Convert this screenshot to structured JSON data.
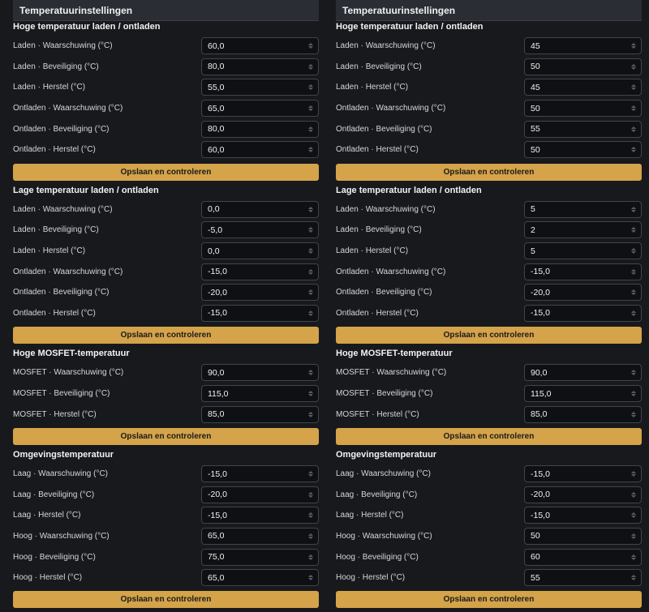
{
  "left": {
    "header": "Temperatuurinstellingen",
    "sections": [
      {
        "title": "Hoge temperatuur laden / ontladen",
        "button": "Opslaan en controleren",
        "rows": [
          {
            "label": "Laden · Waarschuwing (°C)",
            "value": "60,0"
          },
          {
            "label": "Laden · Beveiliging (°C)",
            "value": "80,0"
          },
          {
            "label": "Laden · Herstel (°C)",
            "value": "55,0"
          },
          {
            "label": "Ontladen · Waarschuwing (°C)",
            "value": "65,0"
          },
          {
            "label": "Ontladen · Beveiliging (°C)",
            "value": "80,0"
          },
          {
            "label": "Ontladen · Herstel (°C)",
            "value": "60,0"
          }
        ]
      },
      {
        "title": "Lage temperatuur laden / ontladen",
        "button": "Opslaan en controleren",
        "rows": [
          {
            "label": "Laden · Waarschuwing (°C)",
            "value": "0,0"
          },
          {
            "label": "Laden · Beveiliging (°C)",
            "value": "-5,0"
          },
          {
            "label": "Laden · Herstel (°C)",
            "value": "0,0"
          },
          {
            "label": "Ontladen · Waarschuwing (°C)",
            "value": "-15,0"
          },
          {
            "label": "Ontladen · Beveiliging (°C)",
            "value": "-20,0"
          },
          {
            "label": "Ontladen · Herstel (°C)",
            "value": "-15,0"
          }
        ]
      },
      {
        "title": "Hoge MOSFET-temperatuur",
        "button": "Opslaan en controleren",
        "rows": [
          {
            "label": "MOSFET · Waarschuwing (°C)",
            "value": "90,0"
          },
          {
            "label": "MOSFET · Beveiliging (°C)",
            "value": "115,0"
          },
          {
            "label": "MOSFET · Herstel (°C)",
            "value": "85,0"
          }
        ]
      },
      {
        "title": "Omgevingstemperatuur",
        "button": "Opslaan en controleren",
        "rows": [
          {
            "label": "Laag · Waarschuwing (°C)",
            "value": "-15,0"
          },
          {
            "label": "Laag · Beveiliging (°C)",
            "value": "-20,0"
          },
          {
            "label": "Laag · Herstel (°C)",
            "value": "-15,0"
          },
          {
            "label": "Hoog · Waarschuwing (°C)",
            "value": "65,0"
          },
          {
            "label": "Hoog · Beveiliging (°C)",
            "value": "75,0"
          },
          {
            "label": "Hoog · Herstel (°C)",
            "value": "65,0"
          }
        ]
      }
    ]
  },
  "right": {
    "header": "Temperatuurinstellingen",
    "sections": [
      {
        "title": "Hoge temperatuur laden / ontladen",
        "button": "Opslaan en controleren",
        "rows": [
          {
            "label": "Laden · Waarschuwing (°C)",
            "value": "45"
          },
          {
            "label": "Laden · Beveiliging (°C)",
            "value": "50"
          },
          {
            "label": "Laden · Herstel (°C)",
            "value": "45"
          },
          {
            "label": "Ontladen · Waarschuwing (°C)",
            "value": "50"
          },
          {
            "label": "Ontladen · Beveiliging (°C)",
            "value": "55"
          },
          {
            "label": "Ontladen · Herstel (°C)",
            "value": "50"
          }
        ]
      },
      {
        "title": "Lage temperatuur laden / ontladen",
        "button": "Opslaan en controleren",
        "rows": [
          {
            "label": "Laden · Waarschuwing (°C)",
            "value": "5"
          },
          {
            "label": "Laden · Beveiliging (°C)",
            "value": "2"
          },
          {
            "label": "Laden · Herstel (°C)",
            "value": "5"
          },
          {
            "label": "Ontladen · Waarschuwing (°C)",
            "value": "-15,0"
          },
          {
            "label": "Ontladen · Beveiliging (°C)",
            "value": "-20,0"
          },
          {
            "label": "Ontladen · Herstel (°C)",
            "value": "-15,0"
          }
        ]
      },
      {
        "title": "Hoge MOSFET-temperatuur",
        "button": "Opslaan en controleren",
        "rows": [
          {
            "label": "MOSFET · Waarschuwing (°C)",
            "value": "90,0"
          },
          {
            "label": "MOSFET · Beveiliging (°C)",
            "value": "115,0"
          },
          {
            "label": "MOSFET · Herstel (°C)",
            "value": "85,0"
          }
        ]
      },
      {
        "title": "Omgevingstemperatuur",
        "button": "Opslaan en controleren",
        "rows": [
          {
            "label": "Laag · Waarschuwing (°C)",
            "value": "-15,0"
          },
          {
            "label": "Laag · Beveiliging (°C)",
            "value": "-20,0"
          },
          {
            "label": "Laag · Herstel (°C)",
            "value": "-15,0"
          },
          {
            "label": "Hoog · Waarschuwing (°C)",
            "value": "50"
          },
          {
            "label": "Hoog · Beveiliging (°C)",
            "value": "60"
          },
          {
            "label": "Hoog · Herstel (°C)",
            "value": "55"
          }
        ]
      }
    ]
  }
}
